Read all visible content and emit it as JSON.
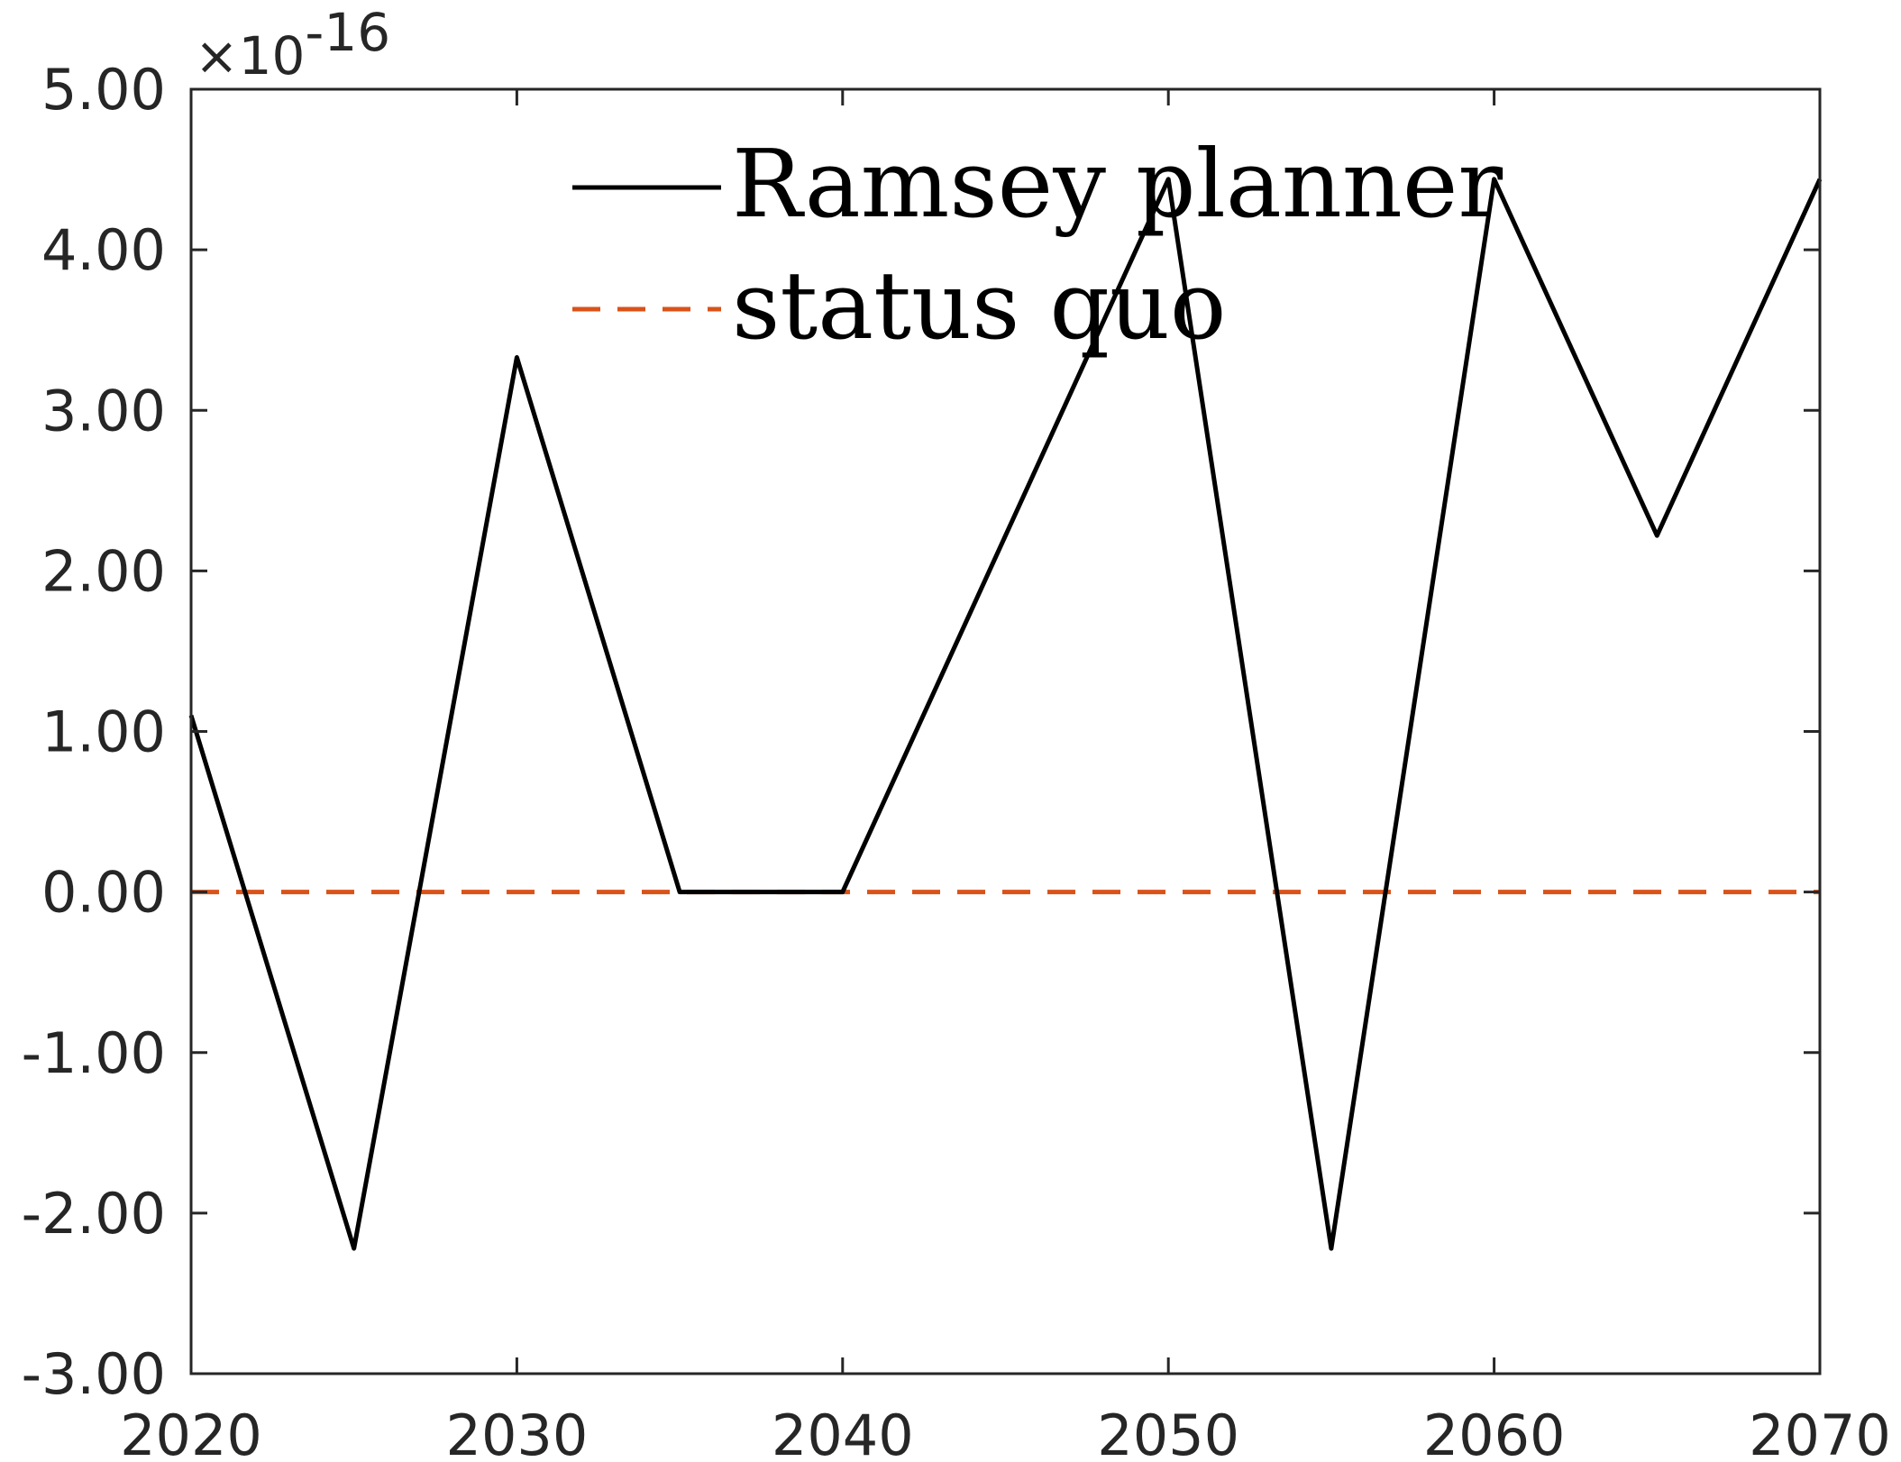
{
  "chart_data": {
    "type": "line",
    "title": "",
    "xlabel": "",
    "ylabel": "",
    "y_exponent_label": "×10",
    "y_exponent_power": "-16",
    "xlim": [
      2020,
      2070
    ],
    "ylim": [
      -3,
      5
    ],
    "x_ticks": [
      2020,
      2030,
      2040,
      2050,
      2060,
      2070
    ],
    "x_tick_labels": [
      "2020",
      "2030",
      "2040",
      "2050",
      "2060",
      "2070"
    ],
    "y_ticks": [
      5,
      4,
      3,
      2,
      1,
      0,
      -1,
      -2,
      -3
    ],
    "y_tick_labels": [
      "5.00",
      "4.00",
      "3.00",
      "2.00",
      "1.00",
      "0.00",
      "-1.00",
      "-2.00",
      "-3.00"
    ],
    "grid": false,
    "legend_position": "top",
    "series": [
      {
        "name": "Ramsey planner",
        "color": "#000000",
        "style": "solid",
        "x": [
          2020,
          2025,
          2030,
          2035,
          2040,
          2050,
          2055,
          2060,
          2065,
          2070
        ],
        "y": [
          1.1,
          -2.22,
          3.33,
          0,
          0,
          4.44,
          -2.22,
          4.44,
          2.22,
          4.44
        ]
      },
      {
        "name": "status quo",
        "color": "#D95319",
        "style": "dashed",
        "x": [
          2020,
          2070
        ],
        "y": [
          0,
          0
        ]
      }
    ]
  }
}
